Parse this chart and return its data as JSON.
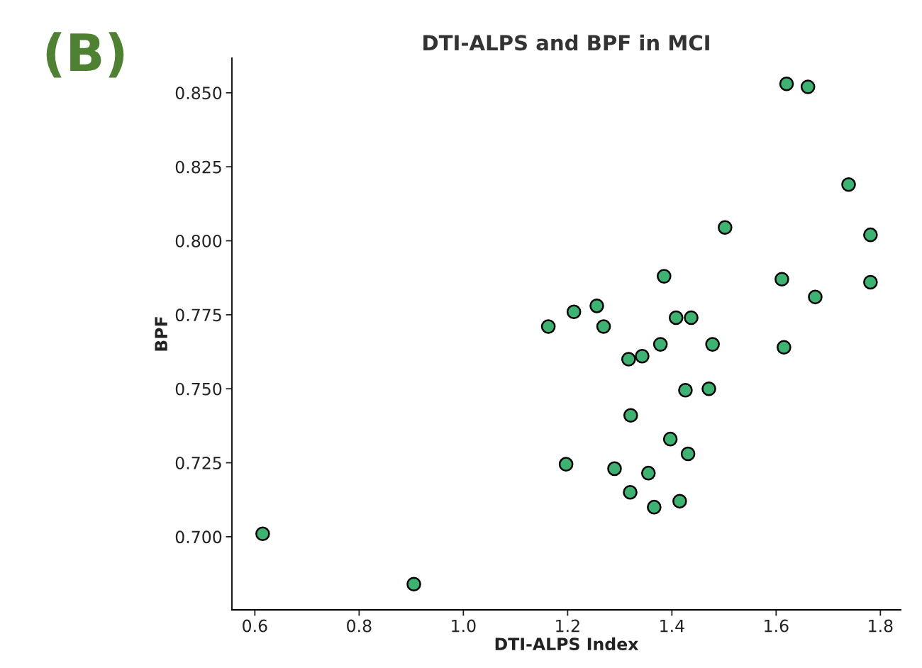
{
  "chart_data": {
    "type": "scatter",
    "title": "DTI-ALPS and BPF in MCI",
    "xlabel": "DTI-ALPS Index",
    "ylabel": "BPF",
    "annotations": [
      "(B)"
    ],
    "x": [
      0.615,
      0.905,
      1.163,
      1.212,
      1.256,
      1.269,
      1.197,
      1.29,
      1.317,
      1.343,
      1.321,
      1.32,
      1.355,
      1.366,
      1.378,
      1.385,
      1.397,
      1.408,
      1.415,
      1.426,
      1.431,
      1.437,
      1.471,
      1.478,
      1.502,
      1.611,
      1.615,
      1.62,
      1.661,
      1.675,
      1.739,
      1.781,
      1.781
    ],
    "series": [
      {
        "color": "#3cb371",
        "values": [
          0.701,
          0.684,
          0.771,
          0.776,
          0.778,
          0.771,
          0.7245,
          0.723,
          0.76,
          0.761,
          0.741,
          0.715,
          0.7215,
          0.71,
          0.765,
          0.788,
          0.733,
          0.774,
          0.712,
          0.7495,
          0.728,
          0.774,
          0.75,
          0.765,
          0.8045,
          0.787,
          0.764,
          0.853,
          0.852,
          0.781,
          0.819,
          0.802,
          0.786
        ]
      }
    ],
    "xlim": [
      0.556,
      1.839
    ],
    "ylim": [
      0.6753,
      0.8617
    ],
    "xticks": [
      {
        "value": 0.6,
        "label": "0.6"
      },
      {
        "value": 0.8,
        "label": "0.8"
      },
      {
        "value": 1.0,
        "label": "1.0"
      },
      {
        "value": 1.2,
        "label": "1.2"
      },
      {
        "value": 1.4,
        "label": "1.4"
      },
      {
        "value": 1.6,
        "label": "1.6"
      },
      {
        "value": 1.8,
        "label": "1.8"
      }
    ],
    "yticks": [
      {
        "value": 0.7,
        "label": "0.700"
      },
      {
        "value": 0.725,
        "label": "0.725"
      },
      {
        "value": 0.75,
        "label": "0.750"
      },
      {
        "value": 0.775,
        "label": "0.775"
      },
      {
        "value": 0.8,
        "label": "0.800"
      },
      {
        "value": 0.825,
        "label": "0.825"
      },
      {
        "value": 0.85,
        "label": "0.850"
      }
    ],
    "marker": "circle",
    "grid": false,
    "legend": false
  }
}
